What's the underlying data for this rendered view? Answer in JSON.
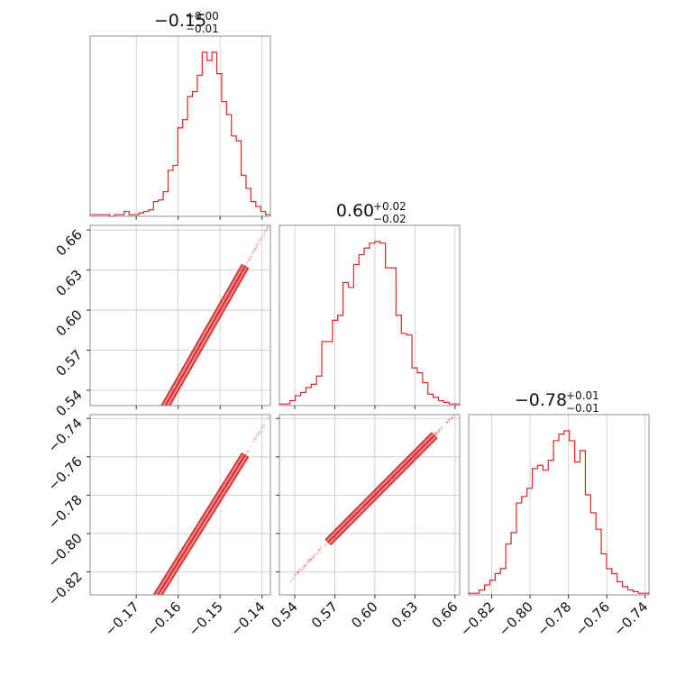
{
  "chart_data": {
    "type": "corner",
    "parameters": [
      {
        "title_value": "−0.15",
        "title_plus": "+0.00",
        "title_minus": "−0.01",
        "range": [
          -0.181,
          -0.138
        ],
        "ticks": [
          -0.17,
          -0.16,
          -0.15,
          -0.14
        ],
        "tick_labels": [
          "−0.17",
          "−0.16",
          "−0.15",
          "−0.14"
        ],
        "hist_counts": [
          1,
          1,
          1,
          1,
          0,
          1,
          1,
          3,
          1,
          1,
          2,
          3,
          4,
          9,
          10,
          15,
          28,
          31,
          54,
          59,
          73,
          76,
          86,
          100,
          95,
          100,
          87,
          70,
          62,
          49,
          46,
          25,
          17,
          9,
          6,
          3,
          1
        ]
      },
      {
        "title_value": "0.60",
        "title_plus": "+0.02",
        "title_minus": "−0.02",
        "range": [
          0.5285,
          0.6635
        ],
        "ticks": [
          0.54,
          0.57,
          0.6,
          0.63,
          0.66
        ],
        "tick_labels": [
          "0.54",
          "0.57",
          "0.60",
          "0.63",
          "0.66"
        ],
        "hist_counts": [
          1,
          1,
          3,
          6,
          8,
          11,
          13,
          18,
          39,
          39,
          52,
          55,
          75,
          72,
          86,
          92,
          96,
          99,
          100,
          99,
          84,
          84,
          55,
          44,
          43,
          23,
          20,
          14,
          7,
          5,
          3,
          2,
          1,
          1
        ]
      },
      {
        "title_value": "−0.78",
        "title_plus": "+0.01",
        "title_minus": "−0.01",
        "range": [
          -0.832,
          -0.738
        ],
        "ticks": [
          -0.82,
          -0.8,
          -0.78,
          -0.76,
          -0.74
        ],
        "tick_labels": [
          "−0.82",
          "−0.80",
          "−0.78",
          "−0.76",
          "−0.74"
        ],
        "hist_counts": [
          1,
          1,
          3,
          6,
          9,
          13,
          16,
          31,
          38,
          56,
          60,
          65,
          77,
          79,
          76,
          82,
          94,
          98,
          100,
          94,
          81,
          88,
          61,
          50,
          40,
          25,
          16,
          13,
          8,
          5,
          3,
          2,
          1,
          1
        ]
      }
    ],
    "pair_relations": {
      "p0_to_p1": {
        "slope": 5.5,
        "intercept": 1.425
      },
      "p0_to_p2": {
        "slope": 3.5,
        "intercept": -0.255
      },
      "p1_to_p2": {
        "slope": 0.7,
        "intercept": -1.2
      }
    },
    "color": "#d62728",
    "grid": true
  }
}
